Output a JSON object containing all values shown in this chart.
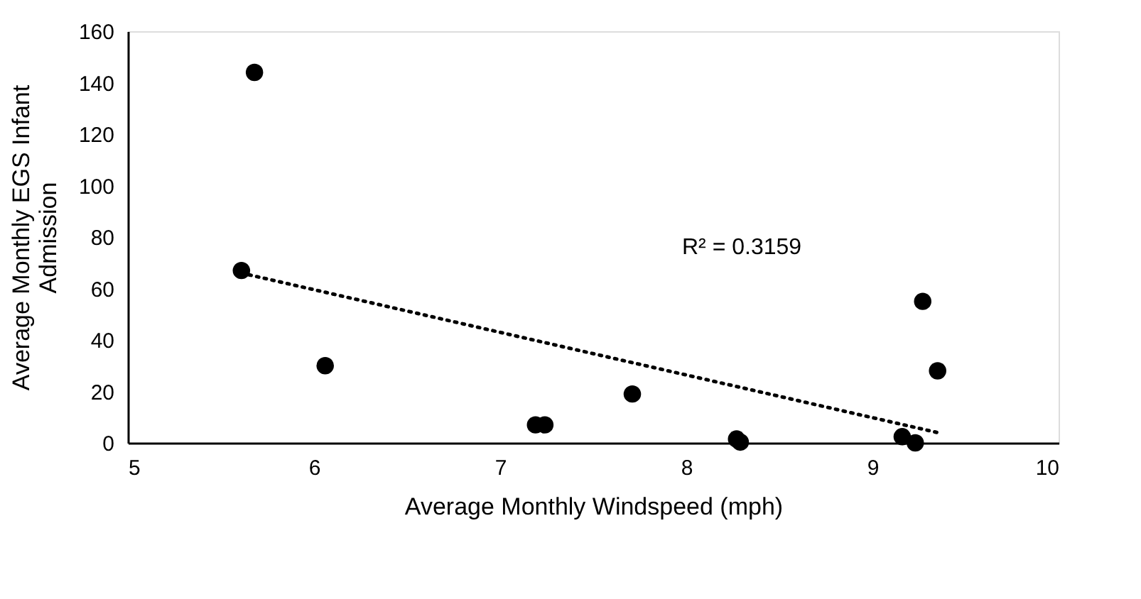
{
  "chart_data": {
    "type": "scatter",
    "xlabel": "Average Monthly Windspeed (mph)",
    "ylabel": "Average Monthly EGS Infant Admission",
    "x": [
      5.68,
      5.61,
      6.06,
      7.19,
      7.24,
      7.71,
      8.27,
      8.29,
      9.16,
      9.23,
      9.27,
      9.35
    ],
    "series": [
      {
        "color": "#000000",
        "marker": "circle",
        "values": [
          144,
          67,
          30,
          7,
          7,
          19,
          1.5,
          0.3,
          2.4,
          0,
          55,
          28
        ]
      },
      {
        "type": "line",
        "marker": "none",
        "line_style": "dotted",
        "color": "#000000",
        "x": [
          5.61,
          9.35
        ],
        "values": [
          66,
          4
        ]
      }
    ],
    "annotations": [
      "R² = 0.3159"
    ],
    "grid": false,
    "xlim": [
      5,
      10
    ],
    "xticks": [
      5,
      6,
      7,
      8,
      9,
      10
    ],
    "ylim": [
      0,
      160
    ],
    "yticks": [
      0,
      20,
      40,
      60,
      80,
      100,
      120,
      140,
      160
    ]
  }
}
